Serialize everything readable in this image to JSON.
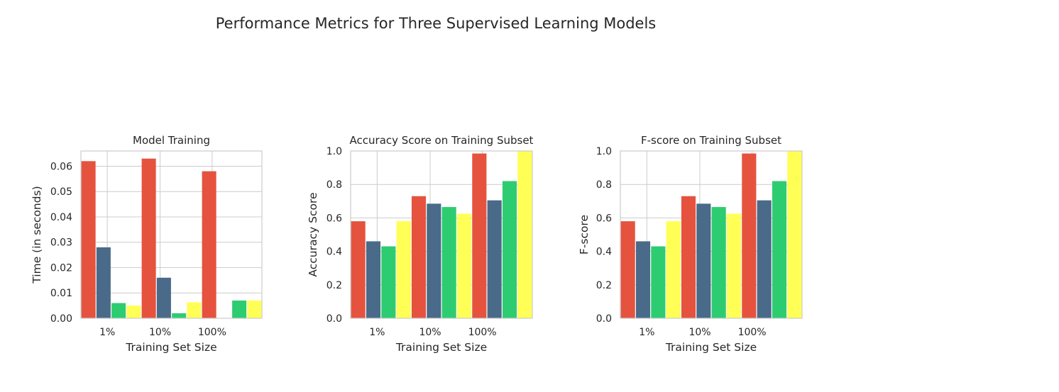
{
  "figure": {
    "title": "Performance Metrics for Three Supervised Learning Models"
  },
  "colors": {
    "red": "#e5533f",
    "navy": "#4a6a8a",
    "green": "#2ecc71",
    "yellow": "#ffff55"
  },
  "chart_data": [
    {
      "type": "bar",
      "title": "Model Training",
      "xlabel": "Training Set Size",
      "ylabel": "Time (in seconds)",
      "categories": [
        "1%",
        "10%",
        "100%"
      ],
      "ylim": [
        0,
        0.066
      ],
      "yticks": [
        "0.00",
        "0.01",
        "0.02",
        "0.03",
        "0.04",
        "0.05",
        "0.06"
      ],
      "yticks_values": [
        0,
        0.01,
        0.02,
        0.03,
        0.04,
        0.05,
        0.06
      ],
      "grid": true,
      "bars": [
        {
          "value": 0.062,
          "color": "red"
        },
        {
          "value": 0.028,
          "color": "navy"
        },
        {
          "value": 0.006,
          "color": "green"
        },
        {
          "value": 0.005,
          "color": "yellow"
        },
        {
          "value": 0.063,
          "color": "red"
        },
        {
          "value": 0.016,
          "color": "navy"
        },
        {
          "value": 0.002,
          "color": "green"
        },
        {
          "value": 0.0063,
          "color": "yellow"
        },
        {
          "value": 0.058,
          "color": "red"
        },
        {
          "value": 0.0,
          "color": "navy"
        },
        {
          "value": 0.007,
          "color": "green"
        },
        {
          "value": 0.007,
          "color": "yellow"
        }
      ]
    },
    {
      "type": "bar",
      "title": "Accuracy Score on Training Subset",
      "xlabel": "Training Set Size",
      "ylabel": "Accuracy Score",
      "categories": [
        "1%",
        "10%",
        "100%"
      ],
      "ylim": [
        0,
        1.0
      ],
      "yticks": [
        "0.0",
        "0.2",
        "0.4",
        "0.6",
        "0.8",
        "1.0"
      ],
      "yticks_values": [
        0,
        0.2,
        0.4,
        0.6,
        0.8,
        1.0
      ],
      "grid": true,
      "bars": [
        {
          "value": 0.58,
          "color": "red"
        },
        {
          "value": 0.46,
          "color": "navy"
        },
        {
          "value": 0.43,
          "color": "green"
        },
        {
          "value": 0.58,
          "color": "yellow"
        },
        {
          "value": 0.73,
          "color": "red"
        },
        {
          "value": 0.685,
          "color": "navy"
        },
        {
          "value": 0.665,
          "color": "green"
        },
        {
          "value": 0.625,
          "color": "yellow"
        },
        {
          "value": 0.985,
          "color": "red"
        },
        {
          "value": 0.705,
          "color": "navy"
        },
        {
          "value": 0.82,
          "color": "green"
        },
        {
          "value": 1.0,
          "color": "yellow"
        }
      ]
    },
    {
      "type": "bar",
      "title": "F-score on Training Subset",
      "xlabel": "Training Set Size",
      "ylabel": "F-score",
      "categories": [
        "1%",
        "10%",
        "100%"
      ],
      "ylim": [
        0,
        1.0
      ],
      "yticks": [
        "0.0",
        "0.2",
        "0.4",
        "0.6",
        "0.8",
        "1.0"
      ],
      "yticks_values": [
        0,
        0.2,
        0.4,
        0.6,
        0.8,
        1.0
      ],
      "grid": true,
      "bars": [
        {
          "value": 0.58,
          "color": "red"
        },
        {
          "value": 0.46,
          "color": "navy"
        },
        {
          "value": 0.43,
          "color": "green"
        },
        {
          "value": 0.58,
          "color": "yellow"
        },
        {
          "value": 0.73,
          "color": "red"
        },
        {
          "value": 0.685,
          "color": "navy"
        },
        {
          "value": 0.665,
          "color": "green"
        },
        {
          "value": 0.625,
          "color": "yellow"
        },
        {
          "value": 0.985,
          "color": "red"
        },
        {
          "value": 0.705,
          "color": "navy"
        },
        {
          "value": 0.82,
          "color": "green"
        },
        {
          "value": 1.0,
          "color": "yellow"
        }
      ]
    }
  ]
}
